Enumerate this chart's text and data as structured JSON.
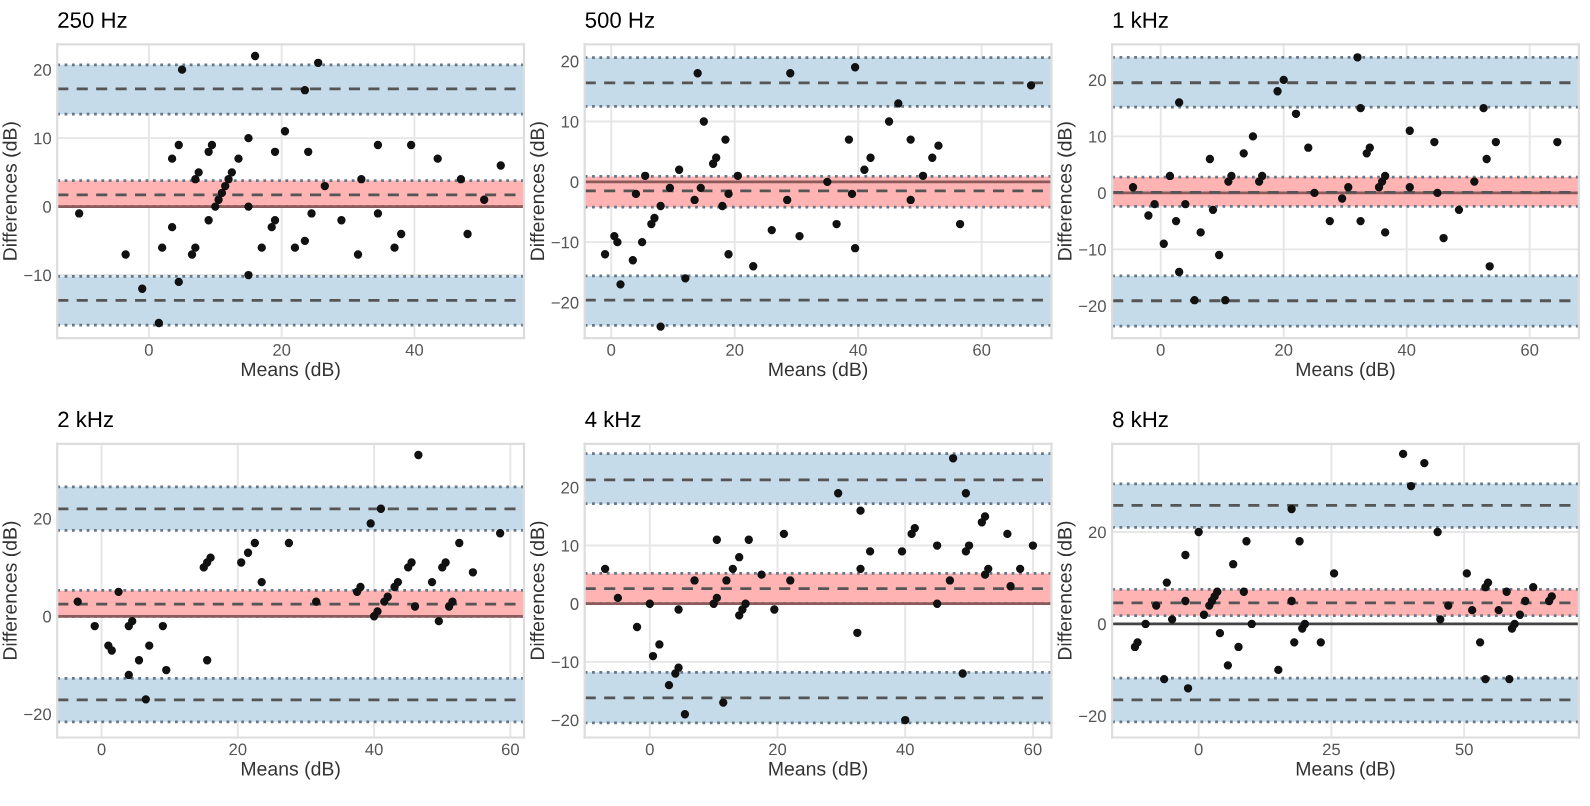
{
  "chart_data": [
    {
      "type": "scatter",
      "title": "250 Hz",
      "xlabel": "Means (dB)",
      "ylabel": "Differences (dB)",
      "xlim": [
        -13.8,
        56.5
      ],
      "ylim": [
        -19.2,
        23.7
      ],
      "xticks": [
        0,
        20,
        40
      ],
      "yticks": [
        -10,
        0,
        10,
        20
      ],
      "grid": true,
      "marker": "circle",
      "bands": [
        {
          "axis": "y",
          "from": 13.5,
          "to": 20.7,
          "color": "#c6dbea"
        },
        {
          "axis": "y",
          "from": 0,
          "to": 3.8,
          "color": "#ffb3b3"
        },
        {
          "axis": "y",
          "from": -17.3,
          "to": -10.2,
          "color": "#c6dbea"
        }
      ],
      "ref_lines": [
        {
          "axis": "y",
          "value": 0,
          "color": "#8b5a5a",
          "line_style": "solid"
        },
        {
          "axis": "y",
          "value": 17.2,
          "color": "#555555",
          "line_style": "dashed"
        },
        {
          "axis": "y",
          "value": 1.7,
          "color": "#555555",
          "line_style": "dashed"
        },
        {
          "axis": "y",
          "value": -13.7,
          "color": "#555555",
          "line_style": "dashed"
        }
      ],
      "series": [
        {
          "color": "#111111",
          "x": [
            -10.5,
            -3.5,
            -1,
            1.5,
            2,
            3.5,
            3.5,
            4.5,
            4.5,
            5,
            6.5,
            7,
            7,
            7.5,
            9,
            9,
            9.5,
            10,
            10.5,
            11,
            11.5,
            12,
            12.5,
            13.5,
            15,
            15,
            15,
            16,
            17,
            18.5,
            19,
            19,
            20.5,
            22,
            23.5,
            23.5,
            24,
            24.5,
            25.5,
            26.5,
            29,
            31.5,
            32,
            34.5,
            34.5,
            37,
            38,
            39.5,
            43.5,
            47,
            48,
            50.5,
            53
          ],
          "values": [
            -1,
            -7,
            -12,
            -17,
            -6,
            7,
            -3,
            9,
            -11,
            20,
            -7,
            4,
            -6,
            5,
            8,
            -2,
            9,
            0,
            1,
            2,
            3,
            4,
            5,
            7,
            10,
            0,
            -10,
            22,
            -6,
            -3,
            8,
            -2,
            11,
            -6,
            17,
            -5,
            8,
            -1,
            21,
            3,
            -2,
            -7,
            4,
            9,
            -1,
            -6,
            -4,
            9,
            7,
            4,
            -4,
            1,
            6
          ]
        }
      ]
    },
    {
      "type": "scatter",
      "title": "500 Hz",
      "xlabel": "Means (dB)",
      "ylabel": "Differences (dB)",
      "xlim": [
        -4.3,
        71.3
      ],
      "ylim": [
        -25.9,
        22.8
      ],
      "xticks": [
        0,
        20,
        40,
        60
      ],
      "yticks": [
        -20,
        -10,
        0,
        10,
        20
      ],
      "grid": true,
      "marker": "circle",
      "bands": [
        {
          "axis": "y",
          "from": 12.5,
          "to": 20.6,
          "color": "#c6dbea"
        },
        {
          "axis": "y",
          "from": -4.2,
          "to": 0.9,
          "color": "#ffb3b3"
        },
        {
          "axis": "y",
          "from": -23.8,
          "to": -15.6,
          "color": "#c6dbea"
        }
      ],
      "ref_lines": [
        {
          "axis": "y",
          "value": 0,
          "color": "#8b5a5a",
          "line_style": "solid"
        },
        {
          "axis": "y",
          "value": 16.4,
          "color": "#555555",
          "line_style": "dashed"
        },
        {
          "axis": "y",
          "value": -1.5,
          "color": "#555555",
          "line_style": "dashed"
        },
        {
          "axis": "y",
          "value": -19.6,
          "color": "#555555",
          "line_style": "dashed"
        }
      ],
      "series": [
        {
          "color": "#111111",
          "x": [
            -1,
            0.5,
            1,
            1.5,
            3.5,
            4,
            5,
            5.5,
            6.5,
            7,
            8,
            8,
            9.5,
            11,
            12,
            13.5,
            14,
            14.5,
            15,
            16.5,
            17,
            18,
            18.5,
            19,
            19,
            20.5,
            23,
            26,
            29,
            28.5,
            30.5,
            35,
            36.5,
            38.5,
            39,
            39.5,
            39.5,
            41,
            42,
            45,
            46.5,
            48.5,
            48.5,
            50.5,
            52,
            53,
            56.5,
            68
          ],
          "values": [
            -12,
            -9,
            -10,
            -17,
            -13,
            -2,
            -10,
            1,
            -7,
            -6,
            -4,
            -24,
            -1,
            2,
            -16,
            -3,
            18,
            -1,
            10,
            3,
            4,
            -4,
            7,
            -2,
            -12,
            1,
            -14,
            -8,
            18,
            -3,
            -9,
            0,
            -7,
            7,
            -2,
            19,
            -11,
            2,
            4,
            10,
            13,
            7,
            -3,
            1,
            4,
            6,
            -7,
            16
          ]
        }
      ]
    },
    {
      "type": "scatter",
      "title": "1 kHz",
      "xlabel": "Means (dB)",
      "ylabel": "Differences (dB)",
      "xlim": [
        -7.9,
        68
      ],
      "ylim": [
        -25.7,
        26.3
      ],
      "xticks": [
        0,
        20,
        40,
        60
      ],
      "yticks": [
        -20,
        -10,
        0,
        10,
        20
      ],
      "grid": true,
      "marker": "circle",
      "bands": [
        {
          "axis": "y",
          "from": 15.2,
          "to": 24,
          "color": "#c6dbea"
        },
        {
          "axis": "y",
          "from": -2.4,
          "to": 2.8,
          "color": "#ffb3b3"
        },
        {
          "axis": "y",
          "from": -23.6,
          "to": -14.7,
          "color": "#c6dbea"
        }
      ],
      "ref_lines": [
        {
          "axis": "y",
          "value": 0,
          "color": "#8b5a5a",
          "line_style": "solid"
        },
        {
          "axis": "y",
          "value": 19.5,
          "color": "#555555",
          "line_style": "dashed"
        },
        {
          "axis": "y",
          "value": 0.1,
          "color": "#555555",
          "line_style": "dashed"
        },
        {
          "axis": "y",
          "value": -19.1,
          "color": "#555555",
          "line_style": "dashed"
        }
      ],
      "series": [
        {
          "color": "#111111",
          "x": [
            -4.5,
            -2,
            -1,
            0.5,
            1.5,
            2.5,
            3,
            3,
            4,
            5.5,
            6.5,
            8,
            8.5,
            9.5,
            10.5,
            11,
            11.5,
            13.5,
            15,
            16,
            16.5,
            19,
            20,
            22,
            24,
            25,
            27.5,
            29.5,
            30.5,
            32,
            32.5,
            32.5,
            33.5,
            34,
            35.5,
            36,
            36.5,
            36.5,
            40.5,
            40.5,
            44.5,
            45,
            46,
            48.5,
            51,
            52.5,
            53,
            53.5,
            54.5,
            64.5
          ],
          "values": [
            1,
            -4,
            -2,
            -9,
            3,
            -5,
            16,
            -14,
            -2,
            -19,
            -7,
            6,
            -3,
            -11,
            -19,
            2,
            3,
            7,
            10,
            2,
            3,
            18,
            20,
            14,
            8,
            0,
            -5,
            -1,
            1,
            24,
            15,
            -5,
            7,
            8,
            1,
            2,
            3,
            -7,
            11,
            1,
            9,
            0,
            -8,
            -3,
            2,
            15,
            6,
            -13,
            9,
            9
          ]
        }
      ]
    },
    {
      "type": "scatter",
      "title": "2 kHz",
      "xlabel": "Means (dB)",
      "ylabel": "Differences (dB)",
      "xlim": [
        -6.5,
        62
      ],
      "ylim": [
        -24.8,
        35.3
      ],
      "xticks": [
        0,
        20,
        40,
        60
      ],
      "yticks": [
        -20,
        0,
        20
      ],
      "grid": true,
      "marker": "circle",
      "bands": [
        {
          "axis": "y",
          "from": 17.6,
          "to": 26.5,
          "color": "#c6dbea"
        },
        {
          "axis": "y",
          "from": 0,
          "to": 5.3,
          "color": "#ffb3b3"
        },
        {
          "axis": "y",
          "from": -21.6,
          "to": -12.7,
          "color": "#c6dbea"
        }
      ],
      "ref_lines": [
        {
          "axis": "y",
          "value": 0,
          "color": "#8b5a5a",
          "line_style": "solid"
        },
        {
          "axis": "y",
          "value": 22,
          "color": "#555555",
          "line_style": "dashed"
        },
        {
          "axis": "y",
          "value": 2.5,
          "color": "#555555",
          "line_style": "dashed"
        },
        {
          "axis": "y",
          "value": -17.1,
          "color": "#555555",
          "line_style": "dashed"
        }
      ],
      "series": [
        {
          "color": "#111111",
          "x": [
            -3.5,
            -1,
            1,
            1.5,
            2.5,
            4,
            4,
            4.5,
            5.5,
            6.5,
            7,
            9,
            9.5,
            15,
            15.5,
            16,
            15.5,
            20.5,
            21.5,
            22.5,
            23.5,
            27.5,
            31.5,
            37.5,
            38,
            39.5,
            40,
            40.5,
            41,
            41.5,
            42,
            43,
            43.5,
            45,
            45.5,
            46,
            46.5,
            48.5,
            49.5,
            50,
            50.5,
            51,
            51.5,
            52.5,
            54.5,
            58.5
          ],
          "values": [
            3,
            -2,
            -6,
            -7,
            5,
            -2,
            -12,
            -1,
            -9,
            -17,
            -6,
            -2,
            -11,
            10,
            11,
            12,
            -9,
            11,
            13,
            15,
            7,
            15,
            3,
            5,
            6,
            19,
            0,
            1,
            22,
            3,
            4,
            6,
            7,
            10,
            11,
            2,
            33,
            7,
            -1,
            10,
            11,
            2,
            3,
            15,
            9,
            17
          ]
        }
      ]
    },
    {
      "type": "scatter",
      "title": "4 kHz",
      "xlabel": "Means (dB)",
      "ylabel": "Differences (dB)",
      "xlim": [
        -10.2,
        62.9
      ],
      "ylim": [
        -23,
        27.5
      ],
      "xticks": [
        0,
        20,
        40,
        60
      ],
      "yticks": [
        -20,
        -10,
        0,
        10,
        20
      ],
      "grid": true,
      "marker": "circle",
      "bands": [
        {
          "axis": "y",
          "from": 17.2,
          "to": 25.8,
          "color": "#c6dbea"
        },
        {
          "axis": "y",
          "from": 0,
          "to": 5.2,
          "color": "#ffb3b3"
        },
        {
          "axis": "y",
          "from": -20.5,
          "to": -11.8,
          "color": "#c6dbea"
        }
      ],
      "ref_lines": [
        {
          "axis": "y",
          "value": 0,
          "color": "#8b5a5a",
          "line_style": "solid"
        },
        {
          "axis": "y",
          "value": 21.3,
          "color": "#555555",
          "line_style": "dashed"
        },
        {
          "axis": "y",
          "value": 2.6,
          "color": "#555555",
          "line_style": "dashed"
        },
        {
          "axis": "y",
          "value": -16.2,
          "color": "#555555",
          "line_style": "dashed"
        }
      ],
      "series": [
        {
          "color": "#111111",
          "x": [
            -7,
            -5,
            -2,
            0,
            0.5,
            1.5,
            3,
            4,
            4.5,
            4.5,
            5.5,
            7,
            10,
            10.5,
            10.5,
            11.5,
            12,
            13,
            14,
            14,
            14.5,
            15,
            15.5,
            17.5,
            19.5,
            21,
            22,
            29.5,
            32.5,
            33,
            33,
            34.5,
            39.5,
            40,
            41,
            41.5,
            45,
            45,
            47,
            47.5,
            49,
            49.5,
            49.5,
            50,
            52,
            52.5,
            52.5,
            53,
            56,
            56.5,
            58,
            60
          ],
          "values": [
            6,
            1,
            -4,
            0,
            -9,
            -7,
            -14,
            -12,
            -11,
            -1,
            -19,
            4,
            0,
            11,
            1,
            -17,
            4,
            6,
            8,
            -2,
            -1,
            0,
            11,
            5,
            -1,
            12,
            4,
            19,
            -5,
            16,
            6,
            9,
            9,
            -20,
            12,
            13,
            10,
            0,
            4,
            25,
            -12,
            9,
            19,
            10,
            14,
            15,
            5,
            6,
            12,
            3,
            6,
            10
          ]
        }
      ]
    },
    {
      "type": "scatter",
      "title": "8 kHz",
      "xlabel": "Means (dB)",
      "ylabel": "Differences (dB)",
      "xlim": [
        -16.3,
        71.6
      ],
      "ylim": [
        -24.7,
        39.2
      ],
      "xticks": [
        0,
        25,
        50
      ],
      "yticks": [
        -20,
        0,
        20
      ],
      "grid": true,
      "marker": "circle",
      "bands": [
        {
          "axis": "y",
          "from": 21,
          "to": 30.5,
          "color": "#c6dbea"
        },
        {
          "axis": "y",
          "from": 1.8,
          "to": 7.5,
          "color": "#ffb3b3"
        },
        {
          "axis": "y",
          "from": -21.3,
          "to": -11.8,
          "color": "#c6dbea"
        }
      ],
      "ref_lines": [
        {
          "axis": "y",
          "value": 0,
          "color": "#444444",
          "line_style": "solid"
        },
        {
          "axis": "y",
          "value": 25.8,
          "color": "#555555",
          "line_style": "dashed"
        },
        {
          "axis": "y",
          "value": 4.6,
          "color": "#555555",
          "line_style": "dashed"
        },
        {
          "axis": "y",
          "value": -16.5,
          "color": "#555555",
          "line_style": "dashed"
        }
      ],
      "series": [
        {
          "color": "#111111",
          "x": [
            -12,
            -11.5,
            -10,
            -8,
            -6.5,
            -6,
            -5,
            -2.5,
            -2.5,
            -2,
            0,
            1,
            2,
            2.5,
            3,
            3.5,
            4,
            5.5,
            6.5,
            7.5,
            8.5,
            9,
            10,
            15,
            17.5,
            17.5,
            18,
            19,
            19.5,
            20,
            23,
            25.5,
            38.5,
            40,
            42.5,
            45,
            45.5,
            47,
            50.5,
            51.5,
            53,
            54,
            54,
            54.5,
            56.5,
            58,
            58.5,
            59,
            59.5,
            60.5,
            61.5,
            63,
            66,
            66.5
          ],
          "values": [
            -5,
            -4,
            0,
            4,
            -12,
            9,
            1,
            15,
            5,
            -14,
            20,
            2,
            4,
            5,
            6,
            7,
            -2,
            -9,
            13,
            -5,
            7,
            18,
            0,
            -10,
            25,
            5,
            -4,
            18,
            -1,
            0,
            -4,
            11,
            37,
            30,
            35,
            20,
            1,
            4,
            11,
            3,
            -4,
            8,
            -12,
            9,
            3,
            7,
            -12,
            -1,
            0,
            2,
            5,
            8,
            5,
            6
          ]
        }
      ]
    }
  ]
}
